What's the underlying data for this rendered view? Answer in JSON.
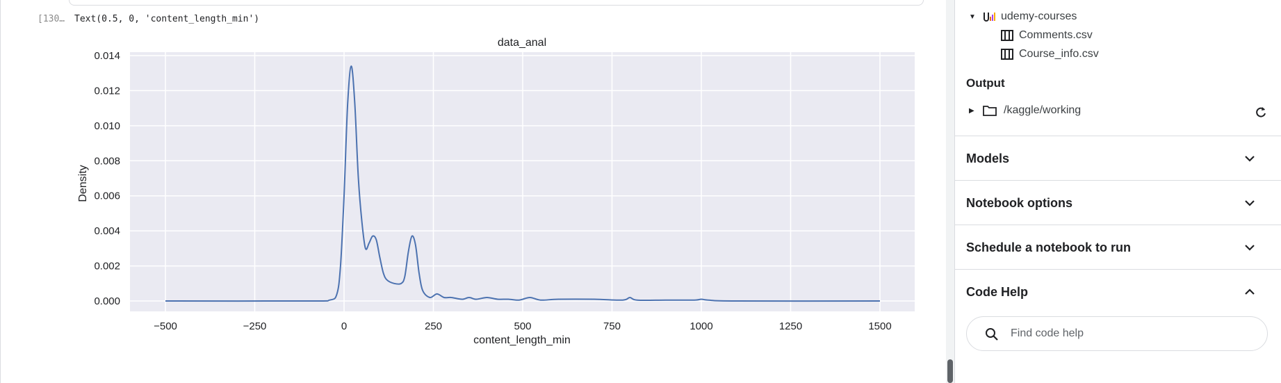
{
  "cell": {
    "exec_count": "[130…",
    "output_text": "Text(0.5, 0, 'content_length_min')"
  },
  "chart_data": {
    "type": "line",
    "title": "data_anal",
    "xlabel": "content_length_min",
    "ylabel": "Density",
    "xlim": [
      -500,
      1500
    ],
    "ylim": [
      0,
      0.014
    ],
    "xticks": [
      "−500",
      "−250",
      "0",
      "250",
      "500",
      "750",
      "1000",
      "1250",
      "1500"
    ],
    "yticks": [
      "0.000",
      "0.002",
      "0.004",
      "0.006",
      "0.008",
      "0.010",
      "0.012",
      "0.014"
    ],
    "grid": true,
    "line_color": "#4c72b0",
    "background": "#eaeaf2",
    "series": [
      {
        "x": [
          -500,
          -100,
          -40,
          -20,
          -10,
          0,
          10,
          20,
          30,
          40,
          50,
          60,
          70,
          80,
          90,
          100,
          110,
          120,
          140,
          160,
          170,
          180,
          190,
          200,
          210,
          220,
          240,
          260,
          280,
          300,
          330,
          350,
          370,
          400,
          430,
          460,
          490,
          520,
          550,
          600,
          700,
          780,
          800,
          820,
          900,
          980,
          1000,
          1020,
          1100,
          1500
        ],
        "y": [
          0,
          0,
          5e-05,
          0.0004,
          0.002,
          0.006,
          0.0112,
          0.0134,
          0.0113,
          0.007,
          0.0045,
          0.003,
          0.0033,
          0.0037,
          0.0035,
          0.0025,
          0.0016,
          0.0012,
          0.001,
          0.001,
          0.0014,
          0.0028,
          0.0037,
          0.0032,
          0.0016,
          0.0006,
          0.0002,
          0.0004,
          0.0002,
          0.0002,
          0.0001,
          0.0002,
          0.0001,
          0.0002,
          0.0001,
          0.0001,
          5e-05,
          0.0002,
          5e-05,
          0.0001,
          0.0001,
          5e-05,
          0.0002,
          5e-05,
          5e-05,
          5e-05,
          0.0001,
          5e-05,
          0,
          0
        ]
      }
    ]
  },
  "sidebar": {
    "dataset_name": "udemy-courses",
    "files": [
      "Comments.csv",
      "Course_info.csv"
    ],
    "output_heading": "Output",
    "output_path": "/kaggle/working",
    "sections": [
      {
        "label": "Models",
        "expanded": false
      },
      {
        "label": "Notebook options",
        "expanded": false
      },
      {
        "label": "Schedule a notebook to run",
        "expanded": false
      },
      {
        "label": "Code Help",
        "expanded": true
      }
    ],
    "search_placeholder": "Find code help"
  },
  "icons": {
    "dataset": "dataset-icon",
    "table": "table-icon",
    "folder": "folder-icon",
    "refresh": "refresh-icon",
    "chevron": "chevron-icon",
    "search": "search-icon"
  }
}
